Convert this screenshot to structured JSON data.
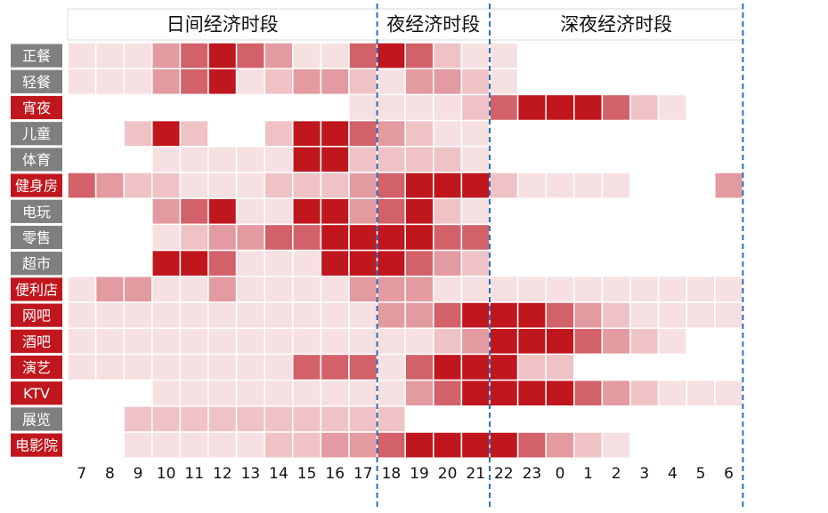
{
  "chart_data": {
    "type": "heatmap",
    "title": "",
    "xlabel": "",
    "ylabel": "",
    "sections": [
      {
        "label": "日间经济时段",
        "cols": [
          0,
          10
        ]
      },
      {
        "label": "夜经济时段",
        "cols": [
          11,
          14
        ]
      },
      {
        "label": "深夜经济时段",
        "cols": [
          15,
          23
        ]
      }
    ],
    "x": [
      "7",
      "8",
      "9",
      "10",
      "11",
      "12",
      "13",
      "14",
      "15",
      "16",
      "17",
      "18",
      "19",
      "20",
      "21",
      "22",
      "23",
      "0",
      "1",
      "2",
      "3",
      "4",
      "5",
      "6"
    ],
    "rows": [
      "正餐",
      "轻餐",
      "宵夜",
      "儿童",
      "体育",
      "健身房",
      "电玩",
      "零售",
      "超市",
      "便利店",
      "网吧",
      "酒吧",
      "演艺",
      "KTV",
      "展览",
      "电影院"
    ],
    "row_label_colors": {
      "gray": "#7f7f7f",
      "red": "#c0161d",
      "red_rows": [
        "宵夜",
        "健身房",
        "便利店",
        "网吧",
        "酒吧",
        "演艺",
        "KTV",
        "电影院"
      ]
    },
    "intensity_scale": "0 = empty, 1 = lightest pink, 5 = darkest red",
    "colors": [
      "#ffffff",
      "#f6e0e1",
      "#efc3c5",
      "#e39aa0",
      "#d2616a",
      "#c0161d"
    ],
    "values": [
      [
        1,
        1,
        1,
        3,
        4,
        5,
        4,
        3,
        1,
        1,
        4,
        5,
        4,
        2,
        1,
        1,
        0,
        0,
        0,
        0,
        0,
        0,
        0,
        0
      ],
      [
        1,
        1,
        1,
        3,
        4,
        5,
        1,
        2,
        3,
        3,
        2,
        1,
        3,
        3,
        2,
        1,
        0,
        0,
        0,
        0,
        0,
        0,
        0,
        0
      ],
      [
        0,
        0,
        0,
        0,
        0,
        0,
        0,
        0,
        0,
        0,
        1,
        1,
        1,
        1,
        2,
        4,
        5,
        5,
        5,
        4,
        2,
        1,
        0,
        0
      ],
      [
        0,
        0,
        2,
        5,
        2,
        0,
        0,
        2,
        5,
        5,
        4,
        3,
        2,
        1,
        1,
        0,
        0,
        0,
        0,
        0,
        0,
        0,
        0,
        0
      ],
      [
        0,
        0,
        0,
        1,
        1,
        1,
        1,
        1,
        5,
        5,
        2,
        2,
        2,
        2,
        1,
        0,
        0,
        0,
        0,
        0,
        0,
        0,
        0,
        0
      ],
      [
        4,
        3,
        2,
        2,
        1,
        1,
        1,
        2,
        2,
        2,
        3,
        4,
        5,
        5,
        5,
        2,
        1,
        1,
        1,
        1,
        0,
        0,
        0,
        3
      ],
      [
        0,
        0,
        0,
        3,
        4,
        5,
        1,
        1,
        5,
        5,
        3,
        4,
        5,
        2,
        1,
        0,
        0,
        0,
        0,
        0,
        0,
        0,
        0,
        0
      ],
      [
        0,
        0,
        0,
        1,
        2,
        3,
        3,
        4,
        4,
        5,
        5,
        5,
        5,
        4,
        4,
        0,
        0,
        0,
        0,
        0,
        0,
        0,
        0,
        0
      ],
      [
        0,
        0,
        0,
        5,
        5,
        4,
        1,
        1,
        1,
        5,
        5,
        5,
        4,
        3,
        2,
        0,
        0,
        0,
        0,
        0,
        0,
        0,
        0,
        0
      ],
      [
        1,
        3,
        3,
        1,
        1,
        3,
        1,
        1,
        1,
        1,
        3,
        3,
        3,
        1,
        1,
        1,
        1,
        1,
        1,
        1,
        1,
        1,
        1,
        1
      ],
      [
        1,
        1,
        1,
        1,
        1,
        1,
        1,
        1,
        1,
        1,
        1,
        3,
        3,
        4,
        5,
        5,
        5,
        4,
        3,
        2,
        1,
        1,
        1,
        1
      ],
      [
        1,
        1,
        1,
        1,
        1,
        1,
        1,
        1,
        1,
        1,
        1,
        1,
        1,
        2,
        3,
        5,
        5,
        5,
        4,
        3,
        2,
        1,
        0,
        0
      ],
      [
        1,
        1,
        1,
        1,
        1,
        1,
        1,
        1,
        4,
        4,
        4,
        1,
        4,
        5,
        5,
        5,
        2,
        2,
        0,
        0,
        0,
        0,
        0,
        0
      ],
      [
        0,
        0,
        0,
        1,
        1,
        1,
        1,
        1,
        1,
        1,
        1,
        1,
        3,
        4,
        5,
        5,
        5,
        5,
        4,
        3,
        2,
        1,
        1,
        1
      ],
      [
        0,
        0,
        2,
        2,
        2,
        2,
        2,
        2,
        2,
        2,
        2,
        2,
        0,
        0,
        0,
        0,
        0,
        0,
        0,
        0,
        0,
        0,
        0,
        0
      ],
      [
        0,
        0,
        1,
        1,
        1,
        1,
        1,
        2,
        2,
        3,
        3,
        4,
        5,
        5,
        5,
        5,
        4,
        3,
        2,
        1,
        0,
        0,
        0,
        0
      ]
    ]
  }
}
